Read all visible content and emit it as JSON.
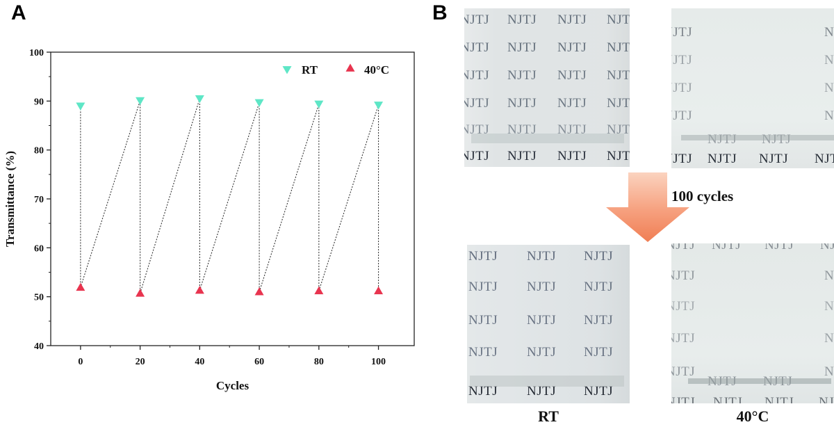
{
  "panels": {
    "a": "A",
    "b": "B"
  },
  "chart_data": {
    "type": "scatter",
    "title": "",
    "xlabel": "Cycles",
    "ylabel": "Transmittance (%)",
    "xlim": [
      -10,
      112
    ],
    "ylim": [
      40,
      100
    ],
    "xticks": [
      0,
      20,
      40,
      60,
      80,
      100
    ],
    "yticks": [
      40,
      50,
      60,
      70,
      80,
      90,
      100
    ],
    "grid": false,
    "legend_position": "top-right",
    "series": [
      {
        "name": "RT",
        "marker": "triangle-down",
        "color": "#5ee6c6",
        "x": [
          0,
          20,
          40,
          60,
          80,
          100
        ],
        "y": [
          89.0,
          90.1,
          90.5,
          89.7,
          89.4,
          89.2
        ]
      },
      {
        "name": "40°C",
        "marker": "triangle-up",
        "color": "#e8344f",
        "x": [
          0,
          20,
          40,
          60,
          80,
          100
        ],
        "y": [
          51.9,
          50.7,
          51.3,
          51.0,
          51.2,
          51.2
        ]
      }
    ],
    "connector": {
      "style": "dotted",
      "color": "#333333"
    }
  },
  "photos": {
    "watermark_text": "NJTJ",
    "arrow_label": "100 cycles",
    "captions": {
      "rt": "RT",
      "hot": "40°C"
    }
  }
}
